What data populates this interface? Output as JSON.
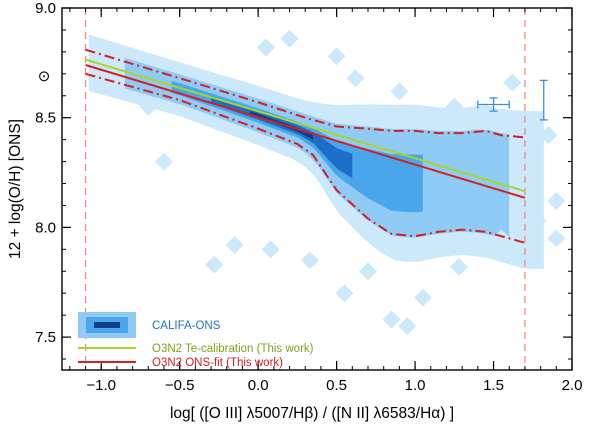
{
  "chart_data": {
    "type": "scatter",
    "xlabel": "log[ ([O III] λ5007/Hβ) / ([N II] λ6583/Hα) ]",
    "ylabel": "12 + log(O/H) [ONS]",
    "xlim": [
      -1.25,
      2.0
    ],
    "ylim": [
      7.35,
      9.0
    ],
    "x_ticks": [
      -1.0,
      -0.5,
      0.0,
      0.5,
      1.0,
      1.5,
      2.0
    ],
    "x_tick_labels": [
      "−1.0",
      "−0.5",
      "0.0",
      "0.5",
      "1.0",
      "1.5",
      "2.0"
    ],
    "y_ticks": [
      7.5,
      8.0,
      8.5,
      9.0
    ],
    "y_tick_labels": [
      "7.5",
      "8.0",
      "8.5",
      "9.0"
    ],
    "solar_symbol": "⊙",
    "solar_y": 8.69,
    "validity_range": [
      -1.1,
      1.7
    ],
    "series": [
      {
        "name": "O3N2 Te-calibration (This work)",
        "style": "solid",
        "color": "#a4d62b",
        "x": [
          -1.1,
          1.7
        ],
        "y": [
          8.765,
          8.165
        ]
      },
      {
        "name": "O3N2 ONS-fit (This work)",
        "style": "solid",
        "color": "#d42020",
        "x": [
          -1.1,
          1.7
        ],
        "y": [
          8.74,
          8.135
        ]
      },
      {
        "name": "ONS-fit upper envelope",
        "style": "dashdot",
        "color": "#d42020",
        "x": [
          -1.1,
          -0.5,
          0.0,
          0.3,
          0.5,
          0.7,
          0.85,
          1.0,
          1.15,
          1.3,
          1.45,
          1.55,
          1.7
        ],
        "y": [
          8.81,
          8.68,
          8.57,
          8.5,
          8.46,
          8.45,
          8.44,
          8.44,
          8.43,
          8.43,
          8.44,
          8.42,
          8.41
        ]
      },
      {
        "name": "ONS-fit lower envelope",
        "style": "dashdot",
        "color": "#d42020",
        "x": [
          -1.1,
          -0.5,
          0.0,
          0.25,
          0.35,
          0.5,
          0.7,
          0.85,
          1.0,
          1.15,
          1.3,
          1.45,
          1.7
        ],
        "y": [
          8.7,
          8.58,
          8.45,
          8.38,
          8.33,
          8.17,
          8.04,
          7.97,
          7.96,
          7.98,
          7.99,
          7.98,
          7.93
        ]
      }
    ],
    "density": {
      "name": "CALIFA-ONS",
      "colors": [
        "#cce8fb",
        "#8fcbf5",
        "#4aa6ea",
        "#1c6fc8",
        "#0d3f8f"
      ]
    },
    "errorbars": [
      {
        "x": 1.5,
        "y": 8.56,
        "xerr": 0.1,
        "yerr": 0.03
      },
      {
        "x": 1.82,
        "y": 8.58,
        "xerr": 0.0,
        "yerr": 0.09
      }
    ],
    "legend": {
      "position": "bottom-left",
      "entries": [
        {
          "label": "CALIFA-ONS",
          "color": "#1c6fc8"
        },
        {
          "label": "O3N2 Te-calibration (This work)",
          "color": "#a4d62b"
        },
        {
          "label": "O3N2 ONS-fit (This work)",
          "color": "#d42020"
        }
      ]
    }
  }
}
